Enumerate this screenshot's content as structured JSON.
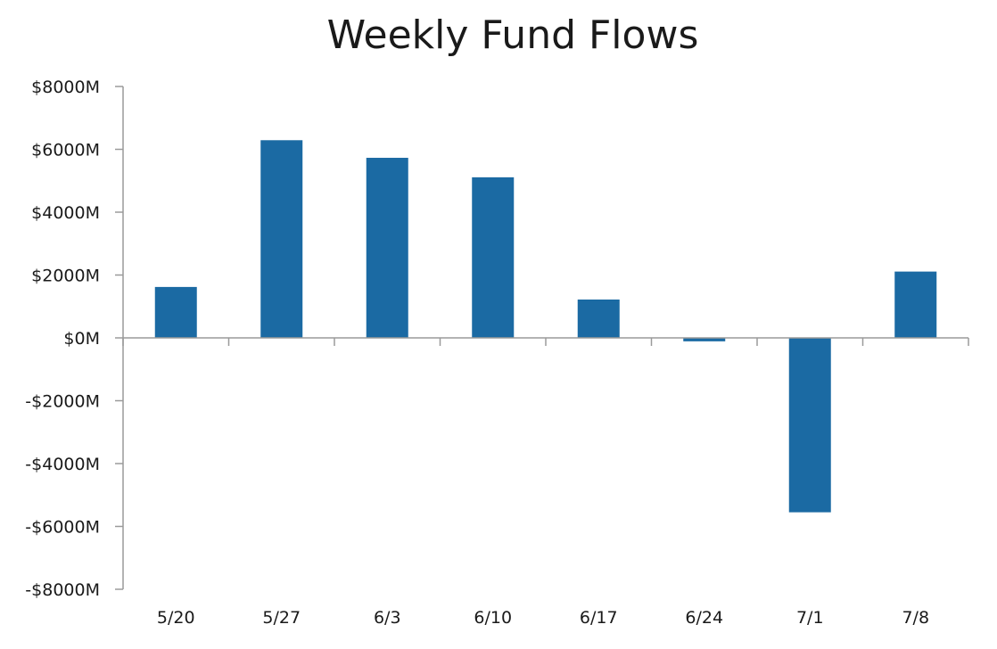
{
  "chart_data": {
    "type": "bar",
    "title": "Weekly Fund Flows",
    "xlabel": "",
    "ylabel": "",
    "categories": [
      "5/20",
      "5/27",
      "6/3",
      "6/10",
      "6/17",
      "6/24",
      "7/1",
      "7/8"
    ],
    "values": [
      1620,
      6290,
      5730,
      5110,
      1220,
      -110,
      -5550,
      2110
    ],
    "unit": "M",
    "ylim": [
      -8000,
      8000
    ],
    "yticks": [
      8000,
      6000,
      4000,
      2000,
      0,
      -2000,
      -4000,
      -6000,
      -8000
    ],
    "ytick_labels": [
      "$8000M",
      "$6000M",
      "$4000M",
      "$2000M",
      "$0M",
      "-$2000M",
      "-$4000M",
      "-$6000M",
      "-$8000M"
    ],
    "grid": false,
    "legend": "none",
    "bar_color": "#1b6aa3",
    "axis_color": "#9a9a9a"
  }
}
